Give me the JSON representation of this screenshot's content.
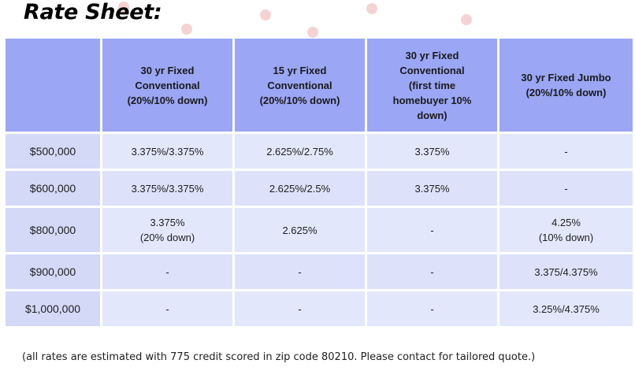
{
  "title": "Rate Sheet:",
  "table": {
    "headers": [
      "",
      "30 yr Fixed\nConventional\n(20%/10% down)",
      "15 yr Fixed\nConventional\n(20%/10% down)",
      "30 yr Fixed\nConventional\n(first time\nhomebuyer 10%\ndown)",
      "30 yr Fixed Jumbo\n(20%/10% down)"
    ],
    "rows": [
      {
        "amount": "$500,000",
        "cells": [
          "3.375%/3.375%",
          "2.625%/2.75%",
          "3.375%",
          "-"
        ]
      },
      {
        "amount": "$600,000",
        "cells": [
          "3.375%/3.375%",
          "2.625%/2.5%",
          "3.375%",
          "-"
        ]
      },
      {
        "amount": "$800,000",
        "cells": [
          "3.375%\n(20% down)",
          "2.625%",
          "-",
          "4.25%\n(10% down)"
        ]
      },
      {
        "amount": "$900,000",
        "cells": [
          "-",
          "-",
          "-",
          "3.375/4.375%"
        ]
      },
      {
        "amount": "$1,000,000",
        "cells": [
          "-",
          "-",
          "-",
          "3.25%/4.375%"
        ]
      }
    ]
  },
  "footnote": "(all rates are estimated with 775 credit scored in zip code 80210. Please contact for tailored quote.)",
  "colors": {
    "header_bg": "#9ba6f4",
    "amount_bg": "#d4d9f7",
    "cell_bg": "#e3e7fb"
  }
}
